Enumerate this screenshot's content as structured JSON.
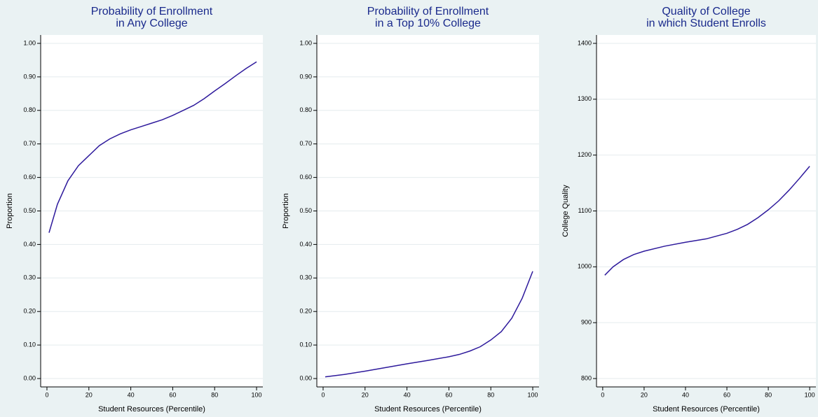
{
  "chart_data": [
    {
      "type": "line",
      "title": [
        "Probability of Enrollment",
        "in Any College"
      ],
      "x_label": "Student Resources (Percentile)",
      "y_label": "Proportion",
      "color": "#2e1a9c",
      "grid": true,
      "x": [
        1,
        5,
        10,
        15,
        20,
        25,
        30,
        35,
        40,
        45,
        50,
        55,
        60,
        65,
        70,
        75,
        80,
        85,
        90,
        95,
        100
      ],
      "values": [
        0.435,
        0.52,
        0.59,
        0.635,
        0.665,
        0.695,
        0.715,
        0.73,
        0.742,
        0.752,
        0.762,
        0.772,
        0.785,
        0.8,
        0.815,
        0.835,
        0.858,
        0.88,
        0.903,
        0.925,
        0.945
      ],
      "xlim": [
        -3,
        103
      ],
      "xticks": [
        0,
        20,
        40,
        60,
        80,
        100
      ],
      "ylim": [
        -0.025,
        1.025
      ],
      "yticks": [
        {
          "value": 0,
          "label": "0.00"
        },
        {
          "value": 0.1,
          "label": "0.10"
        },
        {
          "value": 0.2,
          "label": "0.20"
        },
        {
          "value": 0.3,
          "label": "0.30"
        },
        {
          "value": 0.4,
          "label": "0.40"
        },
        {
          "value": 0.5,
          "label": "0.50"
        },
        {
          "value": 0.6,
          "label": "0.60"
        },
        {
          "value": 0.7,
          "label": "0.70"
        },
        {
          "value": 0.8,
          "label": "0.80"
        },
        {
          "value": 0.9,
          "label": "0.90"
        },
        {
          "value": 1,
          "label": "1.00"
        }
      ]
    },
    {
      "type": "line",
      "title": [
        "Probability of Enrollment",
        "in a Top 10% College"
      ],
      "x_label": "Student Resources (Percentile)",
      "y_label": "Proportion",
      "color": "#2e1a9c",
      "grid": true,
      "x": [
        1,
        10,
        20,
        30,
        40,
        50,
        60,
        65,
        70,
        75,
        80,
        85,
        90,
        95,
        100
      ],
      "values": [
        0.005,
        0.012,
        0.022,
        0.033,
        0.044,
        0.054,
        0.065,
        0.072,
        0.082,
        0.095,
        0.115,
        0.14,
        0.18,
        0.24,
        0.32
      ],
      "xlim": [
        -3,
        103
      ],
      "xticks": [
        0,
        20,
        40,
        60,
        80,
        100
      ],
      "ylim": [
        -0.025,
        1.025
      ],
      "yticks": [
        {
          "value": 0,
          "label": "0.00"
        },
        {
          "value": 0.1,
          "label": "0.10"
        },
        {
          "value": 0.2,
          "label": "0.20"
        },
        {
          "value": 0.3,
          "label": "0.30"
        },
        {
          "value": 0.4,
          "label": "0.40"
        },
        {
          "value": 0.5,
          "label": "0.50"
        },
        {
          "value": 0.6,
          "label": "0.60"
        },
        {
          "value": 0.7,
          "label": "0.70"
        },
        {
          "value": 0.8,
          "label": "0.80"
        },
        {
          "value": 0.9,
          "label": "0.90"
        },
        {
          "value": 1,
          "label": "1.00"
        }
      ]
    },
    {
      "type": "line",
      "title": [
        "Quality of College",
        "in which Student Enrolls"
      ],
      "x_label": "Student Resources (Percentile)",
      "y_label": "College Quality",
      "color": "#2e1a9c",
      "grid": true,
      "x": [
        1,
        5,
        10,
        15,
        20,
        30,
        40,
        50,
        60,
        65,
        70,
        75,
        80,
        85,
        90,
        95,
        100
      ],
      "values": [
        985,
        1000,
        1013,
        1022,
        1028,
        1037,
        1044,
        1050,
        1060,
        1067,
        1076,
        1088,
        1102,
        1118,
        1137,
        1158,
        1180
      ],
      "xlim": [
        -3,
        103
      ],
      "xticks": [
        0,
        20,
        40,
        60,
        80,
        100
      ],
      "ylim": [
        785,
        1415
      ],
      "yticks": [
        800,
        900,
        1000,
        1100,
        1200,
        1300,
        1400
      ]
    }
  ]
}
